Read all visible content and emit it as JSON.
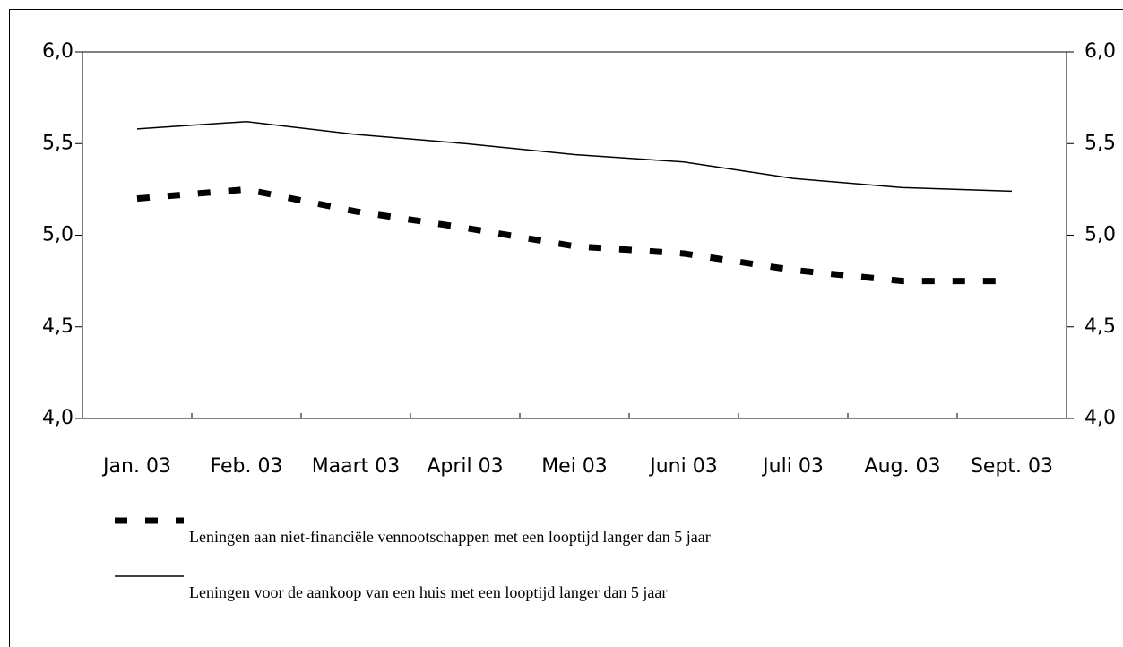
{
  "chart_data": {
    "type": "line",
    "categories": [
      "Jan. 03",
      "Feb. 03",
      "Maart 03",
      "April 03",
      "Mei 03",
      "Juni 03",
      "Juli 03",
      "Aug. 03",
      "Sept. 03"
    ],
    "series": [
      {
        "name": "Leningen aan niet-financiële vennootschappen met een looptijd langer dan 5 jaar",
        "color": "#000000",
        "dashed": true,
        "values": [
          5.2,
          5.25,
          5.13,
          5.04,
          4.94,
          4.9,
          4.81,
          4.75,
          4.75
        ]
      },
      {
        "name": "Leningen voor de aankoop van een huis met een looptijd langer dan 5 jaar",
        "color": "#000000",
        "dashed": false,
        "values": [
          5.58,
          5.62,
          5.55,
          5.5,
          5.44,
          5.4,
          5.31,
          5.26,
          5.24
        ]
      }
    ],
    "ylim": [
      4,
      6
    ],
    "yticks": [
      {
        "value": 4,
        "label": "4,0"
      },
      {
        "value": 4.5,
        "label": "4,5"
      },
      {
        "value": 5,
        "label": "5,0"
      },
      {
        "value": 5.5,
        "label": "5,5"
      },
      {
        "value": 6,
        "label": "6,0"
      }
    ],
    "y2lim": [
      4,
      6
    ],
    "y2ticks": [
      {
        "value": 4,
        "label": "4,0"
      },
      {
        "value": 4.5,
        "label": "4,5"
      },
      {
        "value": 5,
        "label": "5,0"
      },
      {
        "value": 5.5,
        "label": "5,5"
      },
      {
        "value": 6,
        "label": "6,0"
      }
    ]
  }
}
